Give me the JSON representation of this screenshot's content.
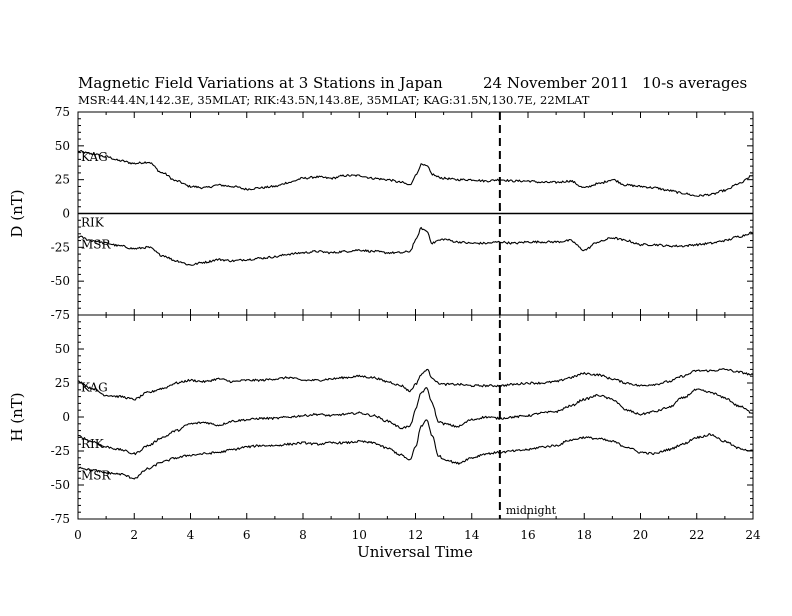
{
  "chart_data": {
    "type": "line",
    "title": "Magnetic Field Variations at 3 Stations in Japan",
    "date": "24 November 2011",
    "averaging": "10-s averages",
    "subtitle": "MSR:44.4N,142.3E, 35MLAT;  RIK:43.5N,143.8E, 35MLAT;  KAG:31.5N,130.7E, 22MLAT",
    "xlabel": "Universal Time",
    "xlim": [
      0,
      24
    ],
    "xticks": [
      0,
      2,
      4,
      6,
      8,
      10,
      12,
      14,
      16,
      18,
      20,
      22,
      24
    ],
    "annotation": {
      "x": 15,
      "text": "midnight"
    },
    "panels": [
      {
        "ylabel": "D (nT)",
        "ylim": [
          -75,
          75
        ],
        "yticks": [
          75,
          50,
          25,
          0,
          -25,
          -50,
          -75
        ],
        "series": [
          {
            "name": "KAG",
            "x": [
              0,
              0.5,
              1.0,
              1.5,
              2.0,
              2.5,
              3.0,
              3.5,
              4.0,
              4.5,
              5.0,
              5.5,
              6.0,
              6.5,
              7.0,
              7.5,
              8.0,
              8.5,
              9.0,
              9.5,
              10.0,
              10.5,
              11.0,
              11.5,
              11.8,
              12.0,
              12.2,
              12.4,
              12.6,
              12.8,
              13.0,
              13.5,
              14.0,
              14.5,
              15.0,
              15.5,
              16.0,
              16.5,
              17.0,
              17.5,
              18.0,
              18.5,
              19.0,
              19.5,
              20.0,
              20.5,
              21.0,
              21.5,
              22.0,
              22.5,
              23.0,
              23.5,
              24.0
            ],
            "y": [
              46,
              44,
              42,
              39,
              37,
              38,
              30,
              24,
              20,
              19,
              21,
              20,
              18,
              19,
              20,
              23,
              26,
              27,
              26,
              28,
              28,
              26,
              25,
              23,
              21,
              28,
              36,
              35,
              29,
              27,
              26,
              25,
              25,
              24,
              25,
              24,
              24,
              23,
              23,
              24,
              19,
              22,
              25,
              21,
              20,
              19,
              17,
              15,
              13,
              14,
              17,
              22,
              28
            ]
          },
          {
            "name": "RIK",
            "x": [
              0,
              24
            ],
            "y": [
              0,
              0
            ]
          },
          {
            "name": "MSR",
            "x": [
              0,
              0.5,
              1.0,
              1.5,
              2.0,
              2.5,
              3.0,
              3.5,
              4.0,
              4.5,
              5.0,
              5.5,
              6.0,
              6.5,
              7.0,
              7.5,
              8.0,
              8.5,
              9.0,
              9.5,
              10.0,
              10.5,
              11.0,
              11.5,
              11.8,
              12.0,
              12.2,
              12.4,
              12.6,
              12.8,
              13.0,
              13.5,
              14.0,
              14.5,
              15.0,
              15.5,
              16.0,
              16.5,
              17.0,
              17.5,
              18.0,
              18.5,
              19.0,
              19.5,
              20.0,
              20.5,
              21.0,
              21.5,
              22.0,
              22.5,
              23.0,
              23.5,
              24.0
            ],
            "y": [
              -17,
              -20,
              -22,
              -24,
              -26,
              -25,
              -31,
              -35,
              -38,
              -36,
              -34,
              -35,
              -34,
              -33,
              -32,
              -30,
              -29,
              -28,
              -29,
              -28,
              -27,
              -28,
              -29,
              -29,
              -28,
              -20,
              -11,
              -13,
              -22,
              -20,
              -19,
              -21,
              -22,
              -22,
              -21,
              -22,
              -21,
              -21,
              -21,
              -20,
              -27,
              -21,
              -18,
              -20,
              -23,
              -23,
              -24,
              -24,
              -23,
              -22,
              -20,
              -17,
              -14
            ]
          }
        ]
      },
      {
        "ylabel": "H (nT)",
        "ylim": [
          -75,
          75
        ],
        "yticks": [
          75,
          50,
          25,
          0,
          -25,
          -50,
          -75
        ],
        "series": [
          {
            "name": "KAG",
            "x": [
              0,
              0.5,
              1.0,
              1.5,
              2.0,
              2.5,
              3.0,
              3.5,
              4.0,
              4.5,
              5.0,
              5.5,
              6.0,
              6.5,
              7.0,
              7.5,
              8.0,
              8.5,
              9.0,
              9.5,
              10.0,
              10.5,
              11.0,
              11.5,
              11.8,
              12.0,
              12.2,
              12.4,
              12.6,
              12.8,
              13.0,
              13.5,
              14.0,
              14.5,
              15.0,
              15.5,
              16.0,
              16.5,
              17.0,
              17.5,
              18.0,
              18.5,
              19.0,
              19.5,
              20.0,
              20.5,
              21.0,
              21.5,
              22.0,
              22.5,
              23.0,
              23.5,
              24.0
            ],
            "y": [
              26,
              21,
              16,
              15,
              13,
              18,
              21,
              25,
              27,
              26,
              28,
              26,
              27,
              27,
              28,
              29,
              27,
              27,
              28,
              29,
              30,
              29,
              26,
              23,
              19,
              24,
              31,
              35,
              29,
              25,
              24,
              24,
              23,
              23,
              23,
              24,
              25,
              25,
              26,
              29,
              32,
              31,
              28,
              25,
              23,
              24,
              26,
              30,
              34,
              34,
              35,
              33,
              31
            ]
          },
          {
            "name": "RIK",
            "x": [
              0,
              0.5,
              1.0,
              1.5,
              2.0,
              2.5,
              3.0,
              3.5,
              4.0,
              4.5,
              5.0,
              5.5,
              6.0,
              6.5,
              7.0,
              7.5,
              8.0,
              8.5,
              9.0,
              9.5,
              10.0,
              10.5,
              11.0,
              11.5,
              11.8,
              12.0,
              12.2,
              12.4,
              12.6,
              12.8,
              13.0,
              13.5,
              14.0,
              14.5,
              15.0,
              15.5,
              16.0,
              16.5,
              17.0,
              17.5,
              18.0,
              18.5,
              19.0,
              19.5,
              20.0,
              20.5,
              21.0,
              21.5,
              22.0,
              22.5,
              23.0,
              23.5,
              24.0
            ],
            "y": [
              -14,
              -18,
              -22,
              -24,
              -27,
              -21,
              -15,
              -10,
              -5,
              -4,
              -6,
              -3,
              -2,
              -1,
              -1,
              0,
              1,
              2,
              1,
              2,
              3,
              1,
              -3,
              -8,
              -7,
              5,
              18,
              21,
              10,
              -3,
              -5,
              -7,
              -2,
              0,
              -1,
              0,
              1,
              3,
              4,
              8,
              13,
              16,
              13,
              5,
              2,
              4,
              7,
              14,
              20,
              18,
              14,
              8,
              3
            ]
          },
          {
            "name": "MSR",
            "x": [
              0,
              0.5,
              1.0,
              1.5,
              2.0,
              2.5,
              3.0,
              3.5,
              4.0,
              4.5,
              5.0,
              5.5,
              6.0,
              6.5,
              7.0,
              7.5,
              8.0,
              8.5,
              9.0,
              9.5,
              10.0,
              10.5,
              11.0,
              11.5,
              11.8,
              12.0,
              12.2,
              12.4,
              12.6,
              12.8,
              13.0,
              13.5,
              14.0,
              14.5,
              15.0,
              15.5,
              16.0,
              16.5,
              17.0,
              17.5,
              18.0,
              18.5,
              19.0,
              19.5,
              20.0,
              20.5,
              21.0,
              21.5,
              22.0,
              22.5,
              23.0,
              23.5,
              24.0
            ],
            "y": [
              -37,
              -39,
              -41,
              -42,
              -45,
              -38,
              -33,
              -30,
              -28,
              -27,
              -26,
              -24,
              -22,
              -21,
              -21,
              -20,
              -19,
              -20,
              -19,
              -19,
              -18,
              -19,
              -23,
              -28,
              -32,
              -22,
              -7,
              -2,
              -14,
              -28,
              -31,
              -34,
              -30,
              -27,
              -26,
              -25,
              -24,
              -22,
              -21,
              -17,
              -15,
              -16,
              -18,
              -22,
              -26,
              -27,
              -24,
              -20,
              -15,
              -13,
              -18,
              -23,
              -25
            ]
          }
        ]
      }
    ],
    "grid": false
  }
}
